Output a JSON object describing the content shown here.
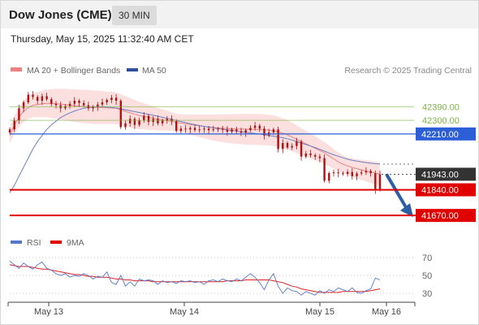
{
  "header": {
    "title": "Dow Jones (CME)",
    "interval": "30 MIN",
    "datetime": "Thursday, May 15, 2025 11:32:40 AM CET"
  },
  "legend": {
    "bollinger_label": "MA 20 + Bollinger Bands",
    "ma50_label": "MA 50",
    "research": "Research © 2025 Trading Central",
    "rsi_label": "RSI",
    "rsi_ma_label": "9MA"
  },
  "colors": {
    "candle": "#b01010",
    "bollinger_fill": "#fcd9d9",
    "ma20": "#e88585",
    "ma50": "#6c7fc2",
    "green_level": "#7cb342",
    "blue_level": "#2c5fd6",
    "red_level": "#e00000",
    "current": "#333333",
    "arrow": "#2d5ea3",
    "rsi": "#5577cc",
    "rsi_ma": "#dd2222"
  },
  "chart_data": [
    {
      "type": "candlestick",
      "title": "Dow Jones (CME)",
      "ylim": [
        41590,
        42570
      ],
      "x_labels": [
        "May 13",
        "May 14",
        "May 15",
        "May 16"
      ],
      "levels": [
        {
          "value": 42390,
          "label": "42390.00",
          "style": "green"
        },
        {
          "value": 42300,
          "label": "42300.00",
          "style": "green"
        },
        {
          "value": 42210,
          "label": "42210.00",
          "style": "blue"
        },
        {
          "value": 41943,
          "label": "41943.00",
          "style": "current"
        },
        {
          "value": 41840,
          "label": "41840.00",
          "style": "red"
        },
        {
          "value": 41670,
          "label": "41670.00",
          "style": "red"
        }
      ],
      "closes": [
        42240,
        42300,
        42380,
        42420,
        42470,
        42455,
        42430,
        42460,
        42440,
        42410,
        42400,
        42380,
        42395,
        42410,
        42430,
        42415,
        42400,
        42380,
        42390,
        42405,
        42420,
        42435,
        42450,
        42430,
        42255,
        42280,
        42310,
        42270,
        42300,
        42330,
        42290,
        42310,
        42280,
        42300,
        42310,
        42295,
        42230,
        42245,
        42240,
        42250,
        42235,
        42240,
        42245,
        42235,
        42240,
        42245,
        42238,
        42225,
        42240,
        42228,
        42218,
        42235,
        42250,
        42265,
        42245,
        42200,
        42220,
        42240,
        42110,
        42150,
        42120,
        42130,
        42160,
        42060,
        42080,
        42070,
        42060,
        42050,
        41900,
        41950,
        41955,
        41950,
        41945,
        41958,
        41930,
        41948,
        41955,
        41965,
        41950,
        41840,
        41943
      ],
      "ma20": [
        42200,
        42270,
        42320,
        42360,
        42385,
        42400,
        42405,
        42410,
        42412,
        42412,
        42410,
        42408,
        42405,
        42400,
        42398,
        42395,
        42392,
        42390,
        42388,
        42386,
        42385,
        42383,
        42382,
        42380,
        42370,
        42360,
        42350,
        42340,
        42332,
        42326,
        42320,
        42314,
        42308,
        42303,
        42298,
        42293,
        42287,
        42282,
        42277,
        42272,
        42268,
        42264,
        42260,
        42256,
        42252,
        42250,
        42248,
        42246,
        42244,
        42243,
        42242,
        42241,
        42240,
        42240,
        42239,
        42237,
        42235,
        42232,
        42225,
        42215,
        42205,
        42190,
        42175,
        42160,
        42145,
        42130,
        42115,
        42100,
        42085,
        42065,
        42045,
        42025,
        42010,
        41998,
        41988,
        41980,
        41972,
        41965,
        41958,
        41950,
        41943
      ],
      "ma50": [
        41820,
        41870,
        41930,
        41990,
        42050,
        42110,
        42160,
        42200,
        42240,
        42270,
        42295,
        42318,
        42335,
        42350,
        42362,
        42372,
        42380,
        42385,
        42388,
        42390,
        42390,
        42389,
        42386,
        42382,
        42376,
        42370,
        42364,
        42358,
        42352,
        42346,
        42340,
        42334,
        42327,
        42320,
        42313,
        42306,
        42299,
        42292,
        42285,
        42278,
        42272,
        42266,
        42260,
        42255,
        42250,
        42245,
        42241,
        42237,
        42233,
        42229,
        42225,
        42221,
        42217,
        42213,
        42209,
        42205,
        42200,
        42195,
        42190,
        42185,
        42178,
        42170,
        42160,
        42150,
        42140,
        42130,
        42120,
        42108,
        42096,
        42084,
        42072,
        42062,
        42052,
        42043,
        42036,
        42030,
        42025,
        42020,
        42016,
        42013,
        42010
      ]
    },
    {
      "type": "line",
      "ylim": [
        20,
        80
      ],
      "y_ticks": [
        70,
        50,
        30
      ],
      "rsi": [
        66,
        62,
        58,
        64,
        60,
        57,
        62,
        65,
        58,
        56,
        52,
        50,
        52,
        48,
        50,
        49,
        52,
        50,
        46,
        49,
        48,
        54,
        42,
        40,
        50,
        38,
        43,
        38,
        46,
        44,
        45,
        44,
        40,
        44,
        42,
        43,
        41,
        44,
        43,
        44,
        42,
        43,
        40,
        44,
        45,
        43,
        46,
        44,
        43,
        46,
        44,
        48,
        52,
        48,
        42,
        34,
        45,
        52,
        38,
        30,
        36,
        33,
        32,
        28,
        32,
        30,
        28,
        33,
        30,
        34,
        32,
        36,
        34,
        32,
        36,
        31,
        30,
        33,
        35,
        47,
        45
      ],
      "rsi_ma": [
        62,
        61,
        60,
        60,
        60,
        59,
        58,
        57,
        57,
        56,
        55,
        54,
        53,
        52,
        51,
        51,
        50,
        49,
        49,
        48,
        48,
        48,
        47,
        46,
        46,
        45,
        45,
        44,
        44,
        44,
        44,
        43,
        43,
        43,
        43,
        43,
        43,
        43,
        43,
        43,
        43,
        43,
        43,
        43,
        43,
        43,
        43,
        44,
        44,
        44,
        44,
        45,
        45,
        45,
        45,
        45,
        45,
        44,
        43,
        42,
        40,
        38,
        37,
        35,
        34,
        33,
        32,
        31,
        31,
        31,
        31,
        31,
        32,
        32,
        32,
        32,
        32,
        32,
        33,
        34,
        35
      ]
    }
  ]
}
